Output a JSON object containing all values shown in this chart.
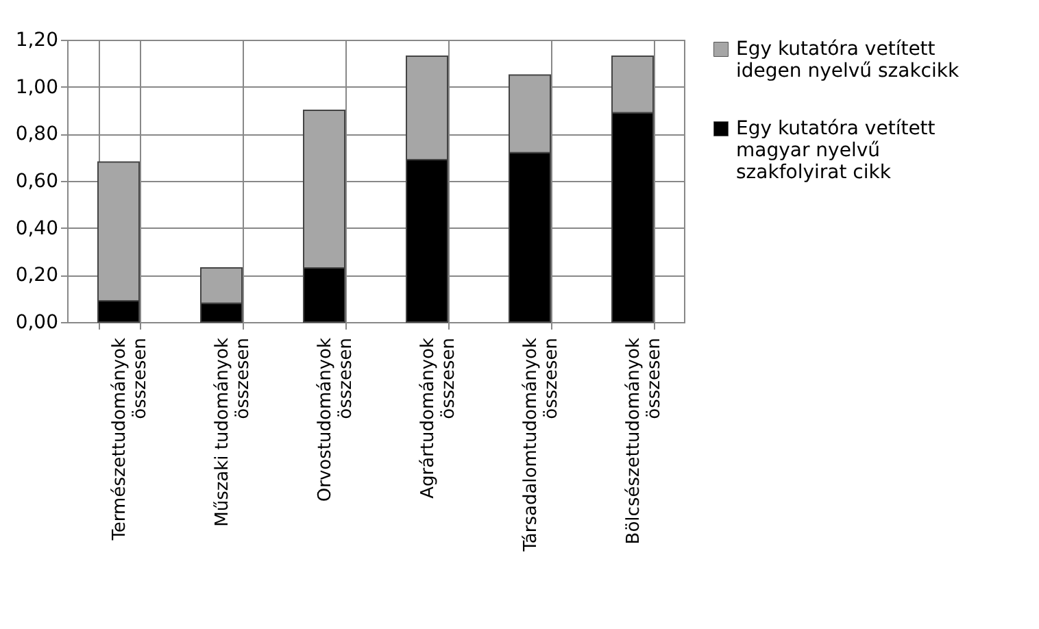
{
  "chart_data": {
    "type": "bar",
    "stacked": true,
    "categories": [
      "Természettudományok összesen",
      "Műszaki tudományok összesen",
      "Orvostudományok összesen",
      "Agrártudományok összesen",
      "Társadalomtudományok összesen",
      "Bölcsészettudományok összesen"
    ],
    "series": [
      {
        "name": "Egy kutatóra vetített magyar nyelvű szakfolyirat cikk",
        "color": "#000000",
        "values": [
          0.09,
          0.08,
          0.23,
          0.69,
          0.72,
          0.89
        ]
      },
      {
        "name": "Egy kutatóra vetített idegen nyelvű szakcikk",
        "color": "#a6a6a6",
        "values": [
          0.59,
          0.15,
          0.67,
          0.44,
          0.33,
          0.24
        ]
      }
    ],
    "ylim": [
      0,
      1.2
    ],
    "yticks": [
      {
        "value": 0,
        "label": "0,00"
      },
      {
        "value": 0.2,
        "label": "0,20"
      },
      {
        "value": 0.4,
        "label": "0,40"
      },
      {
        "value": 0.6,
        "label": "0,60"
      },
      {
        "value": 0.8,
        "label": "0,80"
      },
      {
        "value": 1,
        "label": "1,00"
      },
      {
        "value": 1.2,
        "label": "1,20"
      }
    ],
    "grid": true,
    "legend": "right"
  }
}
